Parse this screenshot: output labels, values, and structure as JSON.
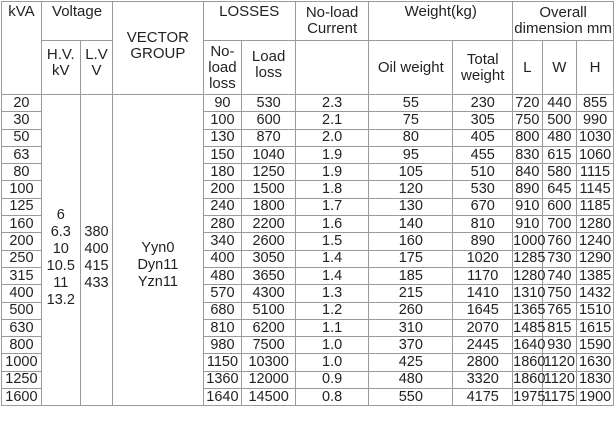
{
  "header": {
    "kva": "kVA",
    "voltage": "Voltage",
    "hv": [
      "H.V.",
      "kV"
    ],
    "lv": [
      "L.V",
      "V"
    ],
    "vector_group": [
      "VECTOR",
      "GROUP"
    ],
    "losses": "LOSSES",
    "no_load_loss": [
      "No-",
      "load",
      "loss"
    ],
    "load_loss": [
      "Load",
      "loss"
    ],
    "no_load_current": [
      "No-load",
      "Current"
    ],
    "weight": "Weight(kg)",
    "oil_weight": "Oil weight",
    "total_weight": [
      "Total",
      "weight"
    ],
    "overall_dimension": [
      "Overall",
      "dimension mm"
    ],
    "dim_l": "L",
    "dim_w": "W",
    "dim_h": "H"
  },
  "hv_values": [
    "6",
    "6.3",
    "10",
    "10.5",
    "11",
    "13.2"
  ],
  "lv_values": [
    "380",
    "400",
    "415",
    "433"
  ],
  "vector_groups": [
    "Yyn0",
    "Dyn11",
    "Yzn11"
  ],
  "rows": [
    {
      "kva": "20",
      "no_load": "90",
      "load": "530",
      "current": "2.3",
      "oil": "55",
      "total": "230",
      "l": "720",
      "w": "440",
      "h": "855"
    },
    {
      "kva": "30",
      "no_load": "100",
      "load": "600",
      "current": "2.1",
      "oil": "75",
      "total": "305",
      "l": "750",
      "w": "500",
      "h": "990"
    },
    {
      "kva": "50",
      "no_load": "130",
      "load": "870",
      "current": "2.0",
      "oil": "80",
      "total": "405",
      "l": "800",
      "w": "480",
      "h": "1030"
    },
    {
      "kva": "63",
      "no_load": "150",
      "load": "1040",
      "current": "1.9",
      "oil": "95",
      "total": "455",
      "l": "830",
      "w": "615",
      "h": "1060"
    },
    {
      "kva": "80",
      "no_load": "180",
      "load": "1250",
      "current": "1.9",
      "oil": "105",
      "total": "510",
      "l": "840",
      "w": "580",
      "h": "1115"
    },
    {
      "kva": "100",
      "no_load": "200",
      "load": "1500",
      "current": "1.8",
      "oil": "120",
      "total": "530",
      "l": "890",
      "w": "645",
      "h": "1145"
    },
    {
      "kva": "125",
      "no_load": "240",
      "load": "1800",
      "current": "1.7",
      "oil": "130",
      "total": "670",
      "l": "910",
      "w": "600",
      "h": "1185"
    },
    {
      "kva": "160",
      "no_load": "280",
      "load": "2200",
      "current": "1.6",
      "oil": "140",
      "total": "810",
      "l": "910",
      "w": "700",
      "h": "1280"
    },
    {
      "kva": "200",
      "no_load": "340",
      "load": "2600",
      "current": "1.5",
      "oil": "160",
      "total": "890",
      "l": "1000",
      "w": "760",
      "h": "1240"
    },
    {
      "kva": "250",
      "no_load": "400",
      "load": "3050",
      "current": "1.4",
      "oil": "175",
      "total": "1020",
      "l": "1285",
      "w": "730",
      "h": "1290"
    },
    {
      "kva": "315",
      "no_load": "480",
      "load": "3650",
      "current": "1.4",
      "oil": "185",
      "total": "1170",
      "l": "1280",
      "w": "740",
      "h": "1385"
    },
    {
      "kva": "400",
      "no_load": "570",
      "load": "4300",
      "current": "1.3",
      "oil": "215",
      "total": "1410",
      "l": "1310",
      "w": "750",
      "h": "1432"
    },
    {
      "kva": "500",
      "no_load": "680",
      "load": "5100",
      "current": "1.2",
      "oil": "260",
      "total": "1645",
      "l": "1365",
      "w": "765",
      "h": "1510"
    },
    {
      "kva": "630",
      "no_load": "810",
      "load": "6200",
      "current": "1.1",
      "oil": "310",
      "total": "2070",
      "l": "1485",
      "w": "815",
      "h": "1615"
    },
    {
      "kva": "800",
      "no_load": "980",
      "load": "7500",
      "current": "1.0",
      "oil": "370",
      "total": "2445",
      "l": "1640",
      "w": "930",
      "h": "1590"
    },
    {
      "kva": "1000",
      "no_load": "1150",
      "load": "10300",
      "current": "1.0",
      "oil": "425",
      "total": "2800",
      "l": "1860",
      "w": "1120",
      "h": "1630"
    },
    {
      "kva": "1250",
      "no_load": "1360",
      "load": "12000",
      "current": "0.9",
      "oil": "480",
      "total": "3320",
      "l": "1860",
      "w": "1120",
      "h": "1830"
    },
    {
      "kva": "1600",
      "no_load": "1640",
      "load": "14500",
      "current": "0.8",
      "oil": "550",
      "total": "4175",
      "l": "1975",
      "w": "1175",
      "h": "1900"
    }
  ]
}
